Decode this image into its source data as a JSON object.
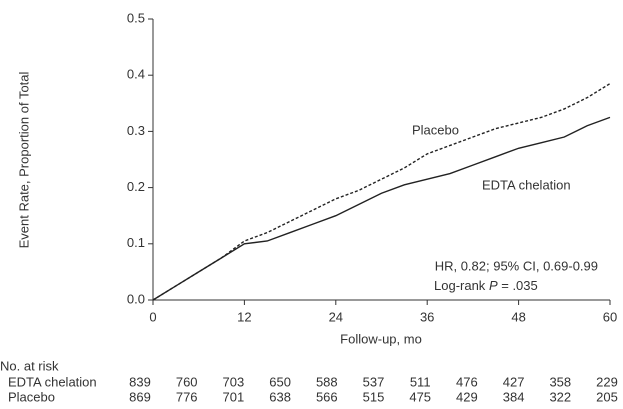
{
  "chart_data": {
    "type": "line",
    "x_label": "Follow-up, mo",
    "y_label": "Event Rate, Proportion of Total",
    "x": [
      0,
      3,
      6,
      9,
      12,
      15,
      18,
      21,
      24,
      27,
      30,
      33,
      36,
      39,
      42,
      45,
      48,
      51,
      54,
      57,
      60
    ],
    "series": [
      {
        "name": "Placebo",
        "color": "#222222",
        "dash": true,
        "values": [
          0,
          0.025,
          0.05,
          0.075,
          0.105,
          0.12,
          0.14,
          0.16,
          0.18,
          0.195,
          0.215,
          0.235,
          0.26,
          0.275,
          0.29,
          0.305,
          0.315,
          0.325,
          0.34,
          0.36,
          0.385
        ]
      },
      {
        "name": "EDTA chelation",
        "color": "#222222",
        "dash": false,
        "values": [
          0,
          0.025,
          0.05,
          0.075,
          0.1,
          0.105,
          0.12,
          0.135,
          0.15,
          0.17,
          0.19,
          0.205,
          0.215,
          0.225,
          0.24,
          0.255,
          0.27,
          0.28,
          0.29,
          0.31,
          0.325
        ]
      }
    ],
    "xlim": [
      0,
      60
    ],
    "xticks": [
      0,
      12,
      24,
      36,
      48,
      60
    ],
    "ylim": [
      0,
      0.5
    ],
    "yticks": [
      {
        "value": 0,
        "label": "0.0"
      },
      0.1,
      0.2,
      0.3,
      0.4,
      0.5
    ],
    "annotations": {
      "hr": "HR, 0.82; 95% CI, 0.69-0.99",
      "logrank_prefix": "Log-rank",
      "logrank_p": "P",
      "logrank_value": "= .035"
    }
  },
  "risk_table": {
    "title": "No. at risk",
    "rows": [
      {
        "name": "EDTA chelation",
        "values": [
          839,
          760,
          703,
          650,
          588,
          537,
          511,
          476,
          427,
          358,
          229
        ]
      },
      {
        "name": "Placebo",
        "values": [
          869,
          776,
          701,
          638,
          566,
          515,
          475,
          429,
          384,
          322,
          205
        ]
      }
    ]
  }
}
